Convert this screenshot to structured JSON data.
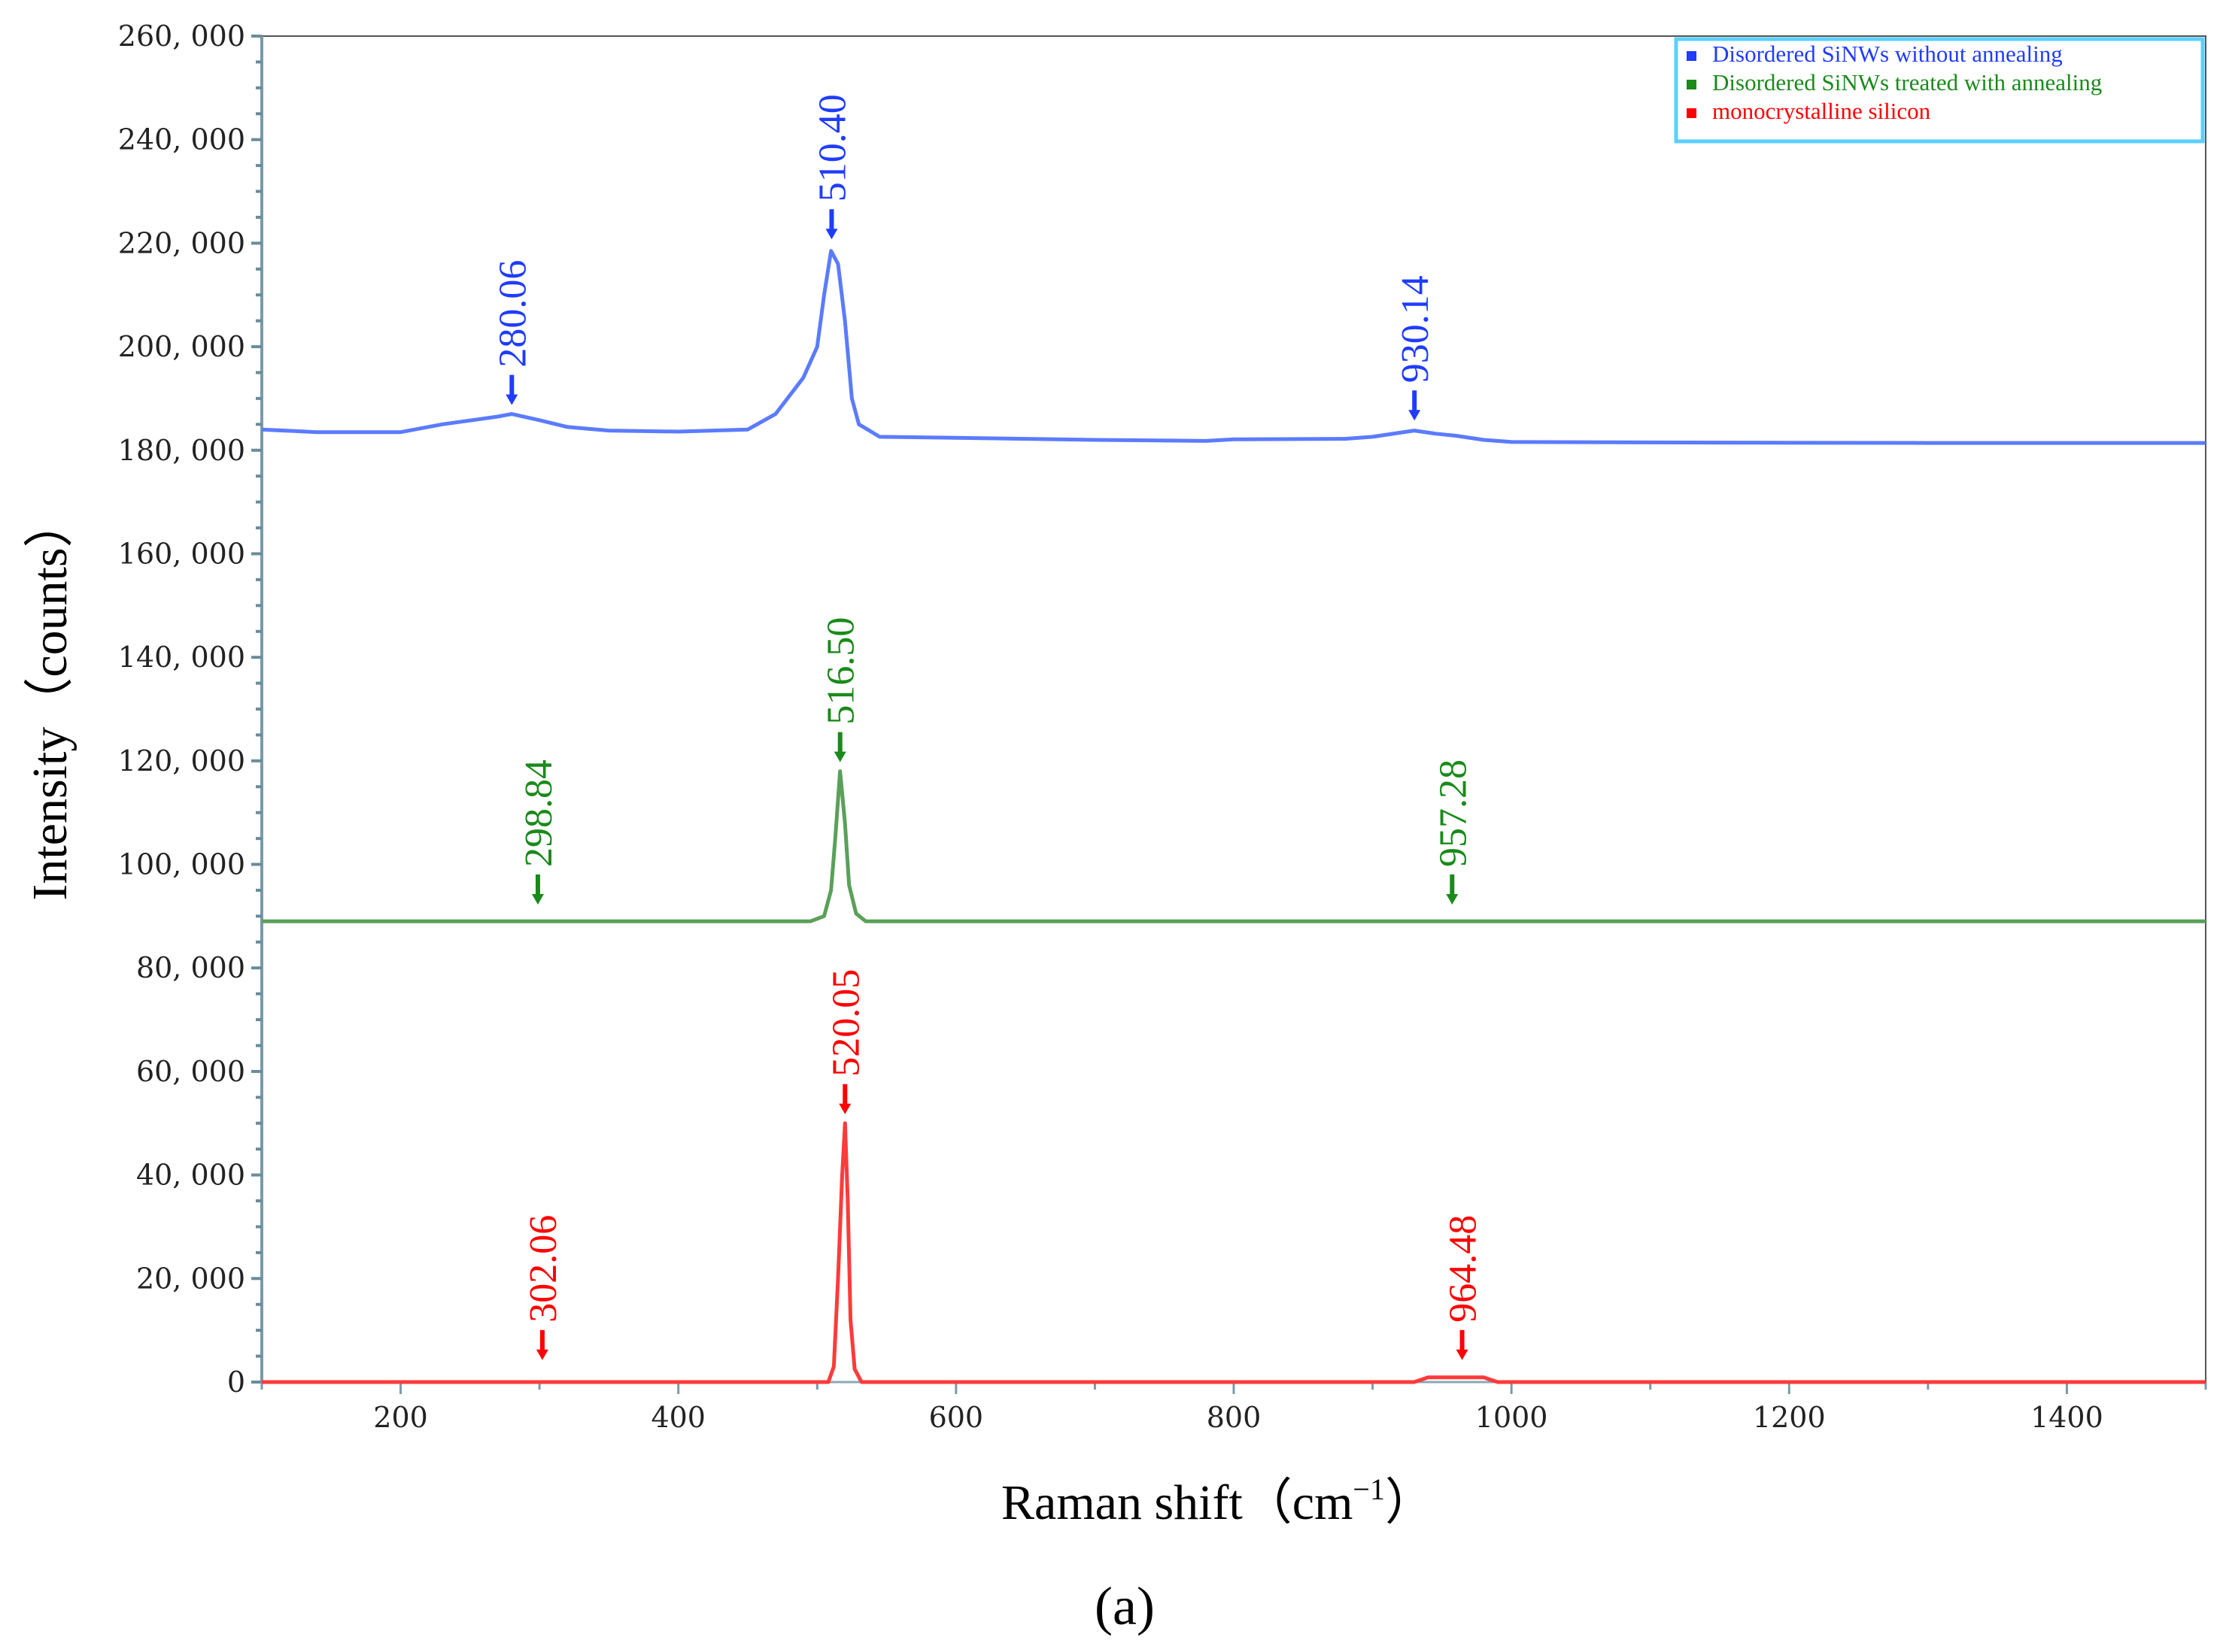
{
  "chart_data": {
    "type": "line",
    "title": "",
    "xlabel": "Raman shift（cm",
    "xlabel_sup": "−1",
    "xlabel_close": "）",
    "ylabel": "Intensity（counts）",
    "xlim": [
      100,
      1500
    ],
    "ylim": [
      0,
      260000
    ],
    "x_ticks": [
      200,
      400,
      600,
      800,
      1000,
      1200,
      1400
    ],
    "x_tick_labels": [
      "200",
      "400",
      "600",
      "800",
      "1000",
      "1200",
      "1400"
    ],
    "y_ticks": [
      0,
      20000,
      40000,
      60000,
      80000,
      100000,
      120000,
      140000,
      160000,
      180000,
      200000,
      220000,
      240000,
      260000
    ],
    "y_tick_labels": [
      "0",
      "20, 000",
      "40, 000",
      "60, 000",
      "80, 000",
      "100, 000",
      "120, 000",
      "140, 000",
      "160, 000",
      "180, 000",
      "200, 000",
      "220, 000",
      "240, 000",
      "260, 000"
    ],
    "grid": false,
    "legend_position": "top-right",
    "panel_label": "(a)",
    "series": [
      {
        "name": "Disordered SiNWs without annealing",
        "color": "#1f3cff",
        "line_color": "#5b7bff",
        "points": [
          [
            100,
            184000
          ],
          [
            140,
            183500
          ],
          [
            200,
            183500
          ],
          [
            230,
            185000
          ],
          [
            270,
            186500
          ],
          [
            280,
            187000
          ],
          [
            300,
            185800
          ],
          [
            320,
            184500
          ],
          [
            350,
            183800
          ],
          [
            400,
            183600
          ],
          [
            450,
            184000
          ],
          [
            470,
            187000
          ],
          [
            490,
            194000
          ],
          [
            500,
            200000
          ],
          [
            505,
            210000
          ],
          [
            510,
            218500
          ],
          [
            515,
            216000
          ],
          [
            520,
            205000
          ],
          [
            525,
            190000
          ],
          [
            530,
            185000
          ],
          [
            545,
            182600
          ],
          [
            600,
            182400
          ],
          [
            700,
            182000
          ],
          [
            780,
            181800
          ],
          [
            800,
            182100
          ],
          [
            880,
            182200
          ],
          [
            900,
            182600
          ],
          [
            920,
            183400
          ],
          [
            930,
            183800
          ],
          [
            945,
            183200
          ],
          [
            960,
            182800
          ],
          [
            980,
            182000
          ],
          [
            1000,
            181600
          ],
          [
            1100,
            181500
          ],
          [
            1300,
            181400
          ],
          [
            1500,
            181400
          ]
        ],
        "peaks": [
          {
            "x": 280.06,
            "label": "280.06",
            "y": 187000
          },
          {
            "x": 510.4,
            "label": "510.40",
            "y": 219000
          },
          {
            "x": 930.14,
            "label": "930.14",
            "y": 184000
          }
        ]
      },
      {
        "name": "Disordered SiNWs  treated with annealing",
        "color": "#1a8a1a",
        "line_color": "#5aa05a",
        "points": [
          [
            100,
            89000
          ],
          [
            400,
            89000
          ],
          [
            495,
            89000
          ],
          [
            505,
            90000
          ],
          [
            510,
            95000
          ],
          [
            513,
            105000
          ],
          [
            516.5,
            118000
          ],
          [
            520,
            108000
          ],
          [
            523,
            96000
          ],
          [
            528,
            90500
          ],
          [
            535,
            89000
          ],
          [
            900,
            89000
          ],
          [
            1200,
            89000
          ],
          [
            1500,
            89000
          ]
        ],
        "peaks": [
          {
            "x": 298.84,
            "label": "298.84",
            "y": 90500
          },
          {
            "x": 516.5,
            "label": "516.50",
            "y": 118000
          },
          {
            "x": 957.28,
            "label": "957.28",
            "y": 90500
          }
        ]
      },
      {
        "name": "monocrystalline silicon",
        "color": "#ff0000",
        "line_color": "#ff3a3a",
        "points": [
          [
            100,
            0
          ],
          [
            480,
            0
          ],
          [
            508,
            0
          ],
          [
            512,
            3000
          ],
          [
            515,
            20000
          ],
          [
            518,
            40000
          ],
          [
            520.05,
            50000
          ],
          [
            522,
            35000
          ],
          [
            524,
            12000
          ],
          [
            527,
            2500
          ],
          [
            532,
            0
          ],
          [
            930,
            0
          ],
          [
            940,
            900
          ],
          [
            980,
            900
          ],
          [
            990,
            0
          ],
          [
            1500,
            0
          ]
        ],
        "peaks": [
          {
            "x": 302.06,
            "label": "302.06",
            "y": 2500
          },
          {
            "x": 520.05,
            "label": "520.05",
            "y": 50000
          },
          {
            "x": 964.48,
            "label": "964.48",
            "y": 2500
          }
        ]
      }
    ]
  }
}
